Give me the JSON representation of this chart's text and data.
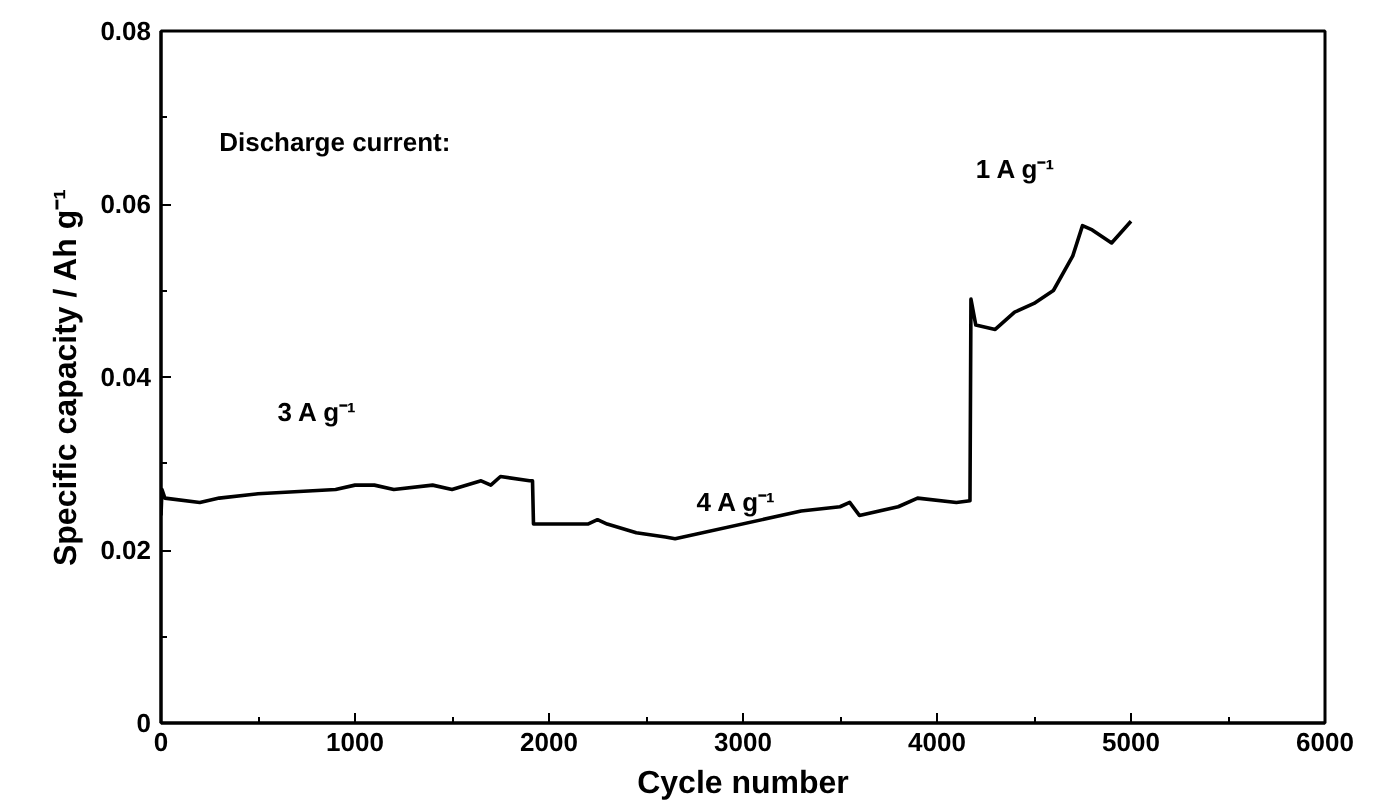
{
  "chart_data": {
    "type": "line",
    "xlabel": "Cycle number",
    "ylabel": "Specific capacity / Ah g⁻¹",
    "xlim": [
      0,
      6000
    ],
    "ylim": [
      0,
      0.08
    ],
    "xticks": [
      0,
      1000,
      2000,
      3000,
      4000,
      5000,
      6000
    ],
    "yticks": [
      {
        "value": 0,
        "label": "0"
      },
      {
        "value": 0.02,
        "label": "0.02"
      },
      {
        "value": 0.04,
        "label": "0.04"
      },
      {
        "value": 0.06,
        "label": "0.06"
      },
      {
        "value": 0.08,
        "label": "0.08"
      }
    ],
    "grid": false,
    "series": [
      {
        "color": "#000000",
        "x": [
          0,
          5,
          20,
          200,
          300,
          500,
          900,
          1000,
          1100,
          1200,
          1400,
          1500,
          1650,
          1700,
          1750,
          1900,
          1915,
          1920,
          2200,
          2250,
          2300,
          2450,
          2600,
          2650,
          3300,
          3500,
          3550,
          3600,
          3800,
          3900,
          4100,
          4170,
          4175,
          4200,
          4300,
          4400,
          4500,
          4600,
          4700,
          4750,
          4800,
          4900,
          5000
        ],
        "values": [
          0.024,
          0.027,
          0.026,
          0.0255,
          0.026,
          0.0265,
          0.027,
          0.0275,
          0.0275,
          0.027,
          0.0275,
          0.027,
          0.028,
          0.0275,
          0.0285,
          0.028,
          0.028,
          0.023,
          0.023,
          0.0235,
          0.023,
          0.022,
          0.0215,
          0.0213,
          0.0245,
          0.025,
          0.0255,
          0.024,
          0.025,
          0.026,
          0.0255,
          0.0257,
          0.049,
          0.046,
          0.0455,
          0.0475,
          0.0485,
          0.05,
          0.054,
          0.0575,
          0.057,
          0.0555,
          0.058
        ]
      }
    ],
    "annotations": [
      "Discharge current:",
      "3 A g⁻¹",
      "4 A g⁻¹",
      "1 A g⁻¹"
    ]
  }
}
